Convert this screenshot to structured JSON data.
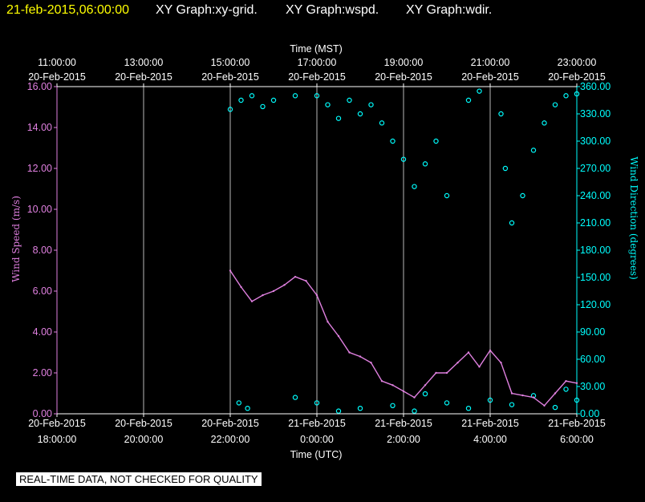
{
  "header": {
    "timestamp": "21-feb-2015,06:00:00",
    "graphs": [
      "XY Graph:xy-grid.",
      "XY Graph:wspd.",
      "XY Graph:wdir."
    ]
  },
  "notice": "REAL-TIME DATA, NOT CHECKED FOR QUALITY",
  "colors": {
    "wspd": "#e080e0",
    "wdir": "#00ffff",
    "timestamp": "#ffff00",
    "grid": "#ffffff"
  },
  "chart_data": {
    "type": "scatter",
    "top_axis": {
      "label": "Time (MST)",
      "ticks": [
        {
          "time": "11:00:00",
          "date": "20-Feb-2015"
        },
        {
          "time": "13:00:00",
          "date": "20-Feb-2015"
        },
        {
          "time": "15:00:00",
          "date": "20-Feb-2015"
        },
        {
          "time": "17:00:00",
          "date": "20-Feb-2015"
        },
        {
          "time": "19:00:00",
          "date": "20-Feb-2015"
        },
        {
          "time": "21:00:00",
          "date": "20-Feb-2015"
        },
        {
          "time": "23:00:00",
          "date": "20-Feb-2015"
        }
      ]
    },
    "bottom_axis": {
      "label": "Time (UTC)",
      "range_hours": [
        18,
        30.33
      ],
      "ticks": [
        {
          "date": "20-Feb-2015",
          "time": "18:00:00"
        },
        {
          "date": "20-Feb-2015",
          "time": "20:00:00"
        },
        {
          "date": "20-Feb-2015",
          "time": "22:00:00"
        },
        {
          "date": "21-Feb-2015",
          "time": "0:00:00"
        },
        {
          "date": "21-Feb-2015",
          "time": "2:00:00"
        },
        {
          "date": "21-Feb-2015",
          "time": "4:00:00"
        },
        {
          "date": "21-Feb-2015",
          "time": "6:00:00"
        }
      ]
    },
    "left_axis": {
      "label": "Wind Speed (m/s)",
      "range": [
        0,
        16
      ],
      "ticks": [
        "0.00",
        "2.00",
        "4.00",
        "6.00",
        "8.00",
        "10.00",
        "12.00",
        "14.00",
        "16.00"
      ]
    },
    "right_axis": {
      "label": "Wind Direction (degrees)",
      "range": [
        0,
        360
      ],
      "ticks": [
        "0.00",
        "30.00",
        "60.00",
        "90.00",
        "120.00",
        "150.00",
        "180.00",
        "210.00",
        "240.00",
        "270.00",
        "300.00",
        "330.00",
        "360.00"
      ]
    },
    "grid": "vertical",
    "series": [
      {
        "axis": "left",
        "style": "line",
        "points": [
          [
            22.0,
            7.0
          ],
          [
            22.25,
            6.2
          ],
          [
            22.5,
            5.5
          ],
          [
            22.75,
            5.8
          ],
          [
            23.0,
            6.0
          ],
          [
            23.25,
            6.3
          ],
          [
            23.5,
            6.7
          ],
          [
            23.75,
            6.5
          ],
          [
            24.0,
            5.8
          ],
          [
            24.25,
            4.5
          ],
          [
            24.5,
            3.8
          ],
          [
            24.75,
            3.0
          ],
          [
            25.0,
            2.8
          ],
          [
            25.25,
            2.5
          ],
          [
            25.5,
            1.6
          ],
          [
            25.75,
            1.4
          ],
          [
            26.0,
            1.1
          ],
          [
            26.25,
            0.8
          ],
          [
            26.5,
            1.4
          ],
          [
            26.75,
            2.0
          ],
          [
            27.0,
            2.0
          ],
          [
            27.25,
            2.5
          ],
          [
            27.5,
            3.0
          ],
          [
            27.75,
            2.3
          ],
          [
            28.0,
            3.1
          ],
          [
            28.25,
            2.5
          ],
          [
            28.5,
            1.0
          ],
          [
            28.75,
            0.9
          ],
          [
            29.0,
            0.8
          ],
          [
            29.25,
            0.4
          ],
          [
            29.5,
            1.0
          ],
          [
            29.75,
            1.6
          ],
          [
            30.0,
            1.5
          ]
        ]
      },
      {
        "axis": "right",
        "style": "points",
        "points": [
          [
            22.0,
            335
          ],
          [
            22.25,
            345
          ],
          [
            22.5,
            350
          ],
          [
            22.75,
            338
          ],
          [
            23.0,
            345
          ],
          [
            23.5,
            350
          ],
          [
            24.0,
            350
          ],
          [
            24.25,
            340
          ],
          [
            24.5,
            325
          ],
          [
            24.75,
            345
          ],
          [
            25.0,
            330
          ],
          [
            25.25,
            340
          ],
          [
            25.5,
            320
          ],
          [
            25.75,
            300
          ],
          [
            26.0,
            280
          ],
          [
            26.25,
            250
          ],
          [
            26.5,
            275
          ],
          [
            26.75,
            300
          ],
          [
            27.0,
            240
          ],
          [
            27.5,
            345
          ],
          [
            27.75,
            355
          ],
          [
            28.25,
            330
          ],
          [
            28.35,
            270
          ],
          [
            28.5,
            210
          ],
          [
            28.75,
            240
          ],
          [
            29.0,
            290
          ],
          [
            29.25,
            320
          ],
          [
            29.5,
            340
          ],
          [
            29.75,
            350
          ],
          [
            30.0,
            352
          ],
          [
            22.2,
            12
          ],
          [
            22.4,
            6
          ],
          [
            23.5,
            18
          ],
          [
            24.0,
            12
          ],
          [
            24.5,
            3
          ],
          [
            25.0,
            6
          ],
          [
            25.75,
            9
          ],
          [
            26.25,
            3
          ],
          [
            26.5,
            22
          ],
          [
            27.0,
            12
          ],
          [
            27.5,
            6
          ],
          [
            28.0,
            15
          ],
          [
            28.5,
            10
          ],
          [
            29.0,
            20
          ],
          [
            29.5,
            7
          ],
          [
            29.75,
            27
          ],
          [
            30.0,
            15
          ]
        ]
      }
    ]
  }
}
